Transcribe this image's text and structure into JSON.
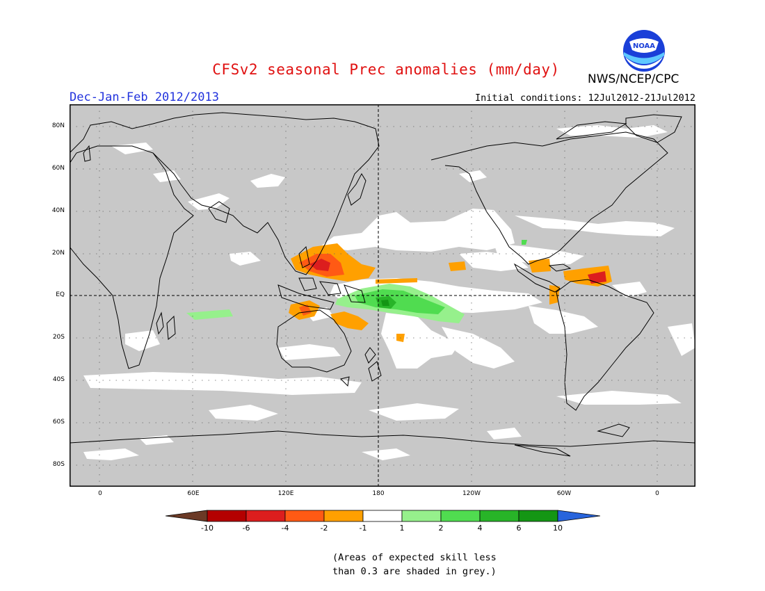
{
  "header": {
    "title": "CFSv2 seasonal Prec anomalies (mm/day)",
    "agency": "NWS/NCEP/CPC",
    "logo_text": "NOAA",
    "season": "Dec-Jan-Feb 2012/2013",
    "initial_conditions": "Initial conditions: 12Jul2012-21Jul2012"
  },
  "map": {
    "projection": "cylindrical equidistant",
    "background": "#c8c8c8",
    "lat_labels": [
      "80N",
      "60N",
      "40N",
      "20N",
      "EQ",
      "20S",
      "40S",
      "60S",
      "80S"
    ],
    "lon_labels": [
      "0",
      "60E",
      "120E",
      "180",
      "120W",
      "60W",
      "0"
    ]
  },
  "colorbar": {
    "labels": [
      "-10",
      "-6",
      "-4",
      "-2",
      "-1",
      "1",
      "2",
      "4",
      "6",
      "10"
    ],
    "colors": {
      "lt_minus10": "#6b3a26",
      "m10_m6": "#b40000",
      "m6_m4": "#dc1e1e",
      "m4_m2": "#ff5a14",
      "m2_m1": "#ffa000",
      "m1_1": "#ffffff",
      "p1_p2": "#96f08c",
      "p2_p4": "#50dc50",
      "p4_p6": "#28b428",
      "p6_p10": "#149614",
      "gt_10": "#2864dc"
    }
  },
  "note": {
    "line1": "(Areas of expected skill less",
    "line2": "than 0.3 are shaded in grey.)"
  }
}
